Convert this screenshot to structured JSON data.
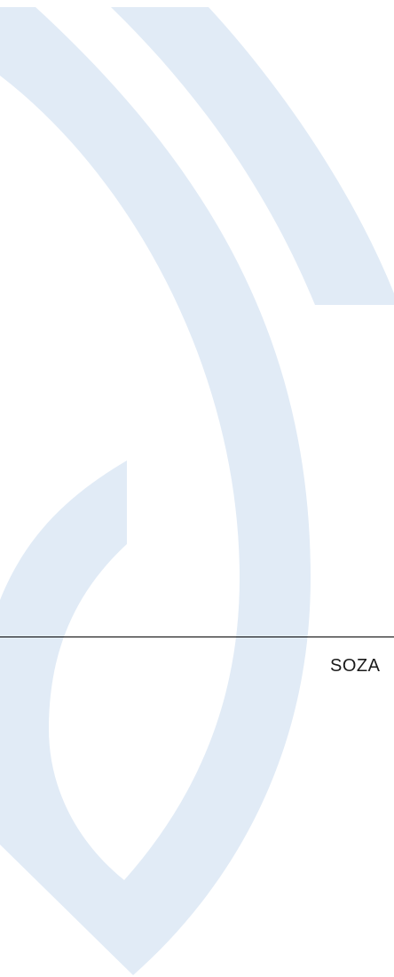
{
  "footer": {
    "brand": "SOZA"
  }
}
